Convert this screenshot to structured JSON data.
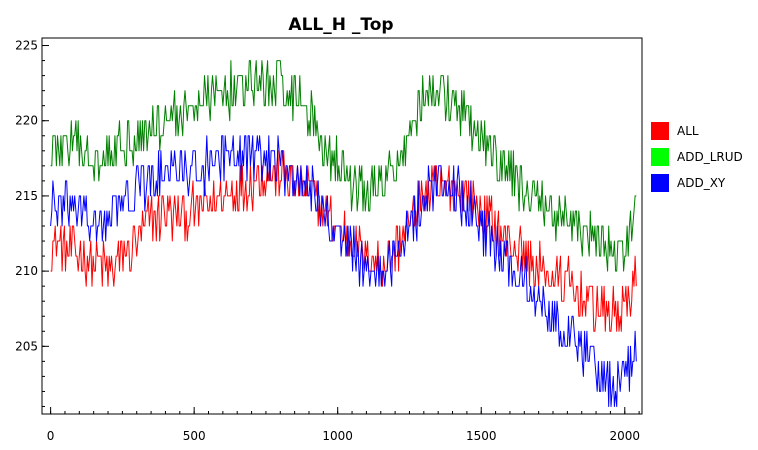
{
  "chart_data": {
    "type": "line",
    "title": "ALL_H _Top",
    "xlabel": "",
    "ylabel": "",
    "xlim": [
      -30,
      2060
    ],
    "ylim": [
      200.5,
      225.5
    ],
    "xticks": [
      0,
      500,
      1000,
      1500,
      2000
    ],
    "yticks": [
      205,
      210,
      215,
      220,
      225
    ],
    "grid": false,
    "legend_position": "right",
    "series": [
      {
        "name": "ALL",
        "color": "#ff0000",
        "x": [
          0,
          50,
          100,
          150,
          200,
          250,
          300,
          350,
          400,
          450,
          500,
          550,
          600,
          650,
          700,
          750,
          800,
          850,
          900,
          950,
          1000,
          1050,
          1100,
          1150,
          1200,
          1250,
          1300,
          1350,
          1400,
          1450,
          1500,
          1550,
          1600,
          1650,
          1700,
          1750,
          1800,
          1850,
          1900,
          1950,
          2000,
          2040
        ],
        "values": [
          212,
          211.5,
          211,
          210.5,
          210,
          211,
          212,
          213.5,
          214,
          213.5,
          214,
          214.5,
          215,
          215.5,
          216,
          216.5,
          216.5,
          216,
          215.5,
          214,
          213,
          212,
          211,
          210.5,
          211.5,
          213,
          215,
          215.5,
          215.5,
          215,
          214,
          213,
          212,
          211,
          210,
          209.5,
          209,
          208.5,
          207.5,
          207,
          207.5,
          210
        ]
      },
      {
        "name": "ADD_LRUD",
        "color": "#008000",
        "x": [
          0,
          50,
          100,
          150,
          200,
          250,
          300,
          350,
          400,
          450,
          500,
          550,
          600,
          650,
          700,
          750,
          800,
          850,
          900,
          950,
          1000,
          1050,
          1100,
          1150,
          1200,
          1250,
          1300,
          1350,
          1400,
          1450,
          1500,
          1550,
          1600,
          1650,
          1700,
          1750,
          1800,
          1850,
          1900,
          1950,
          2000,
          2040
        ],
        "values": [
          218,
          218.5,
          218,
          217.5,
          218,
          218.5,
          219,
          219.5,
          220,
          220.5,
          221,
          221.5,
          222,
          222,
          222.5,
          222.5,
          222.5,
          222,
          220.5,
          218.5,
          217,
          216,
          215,
          215.5,
          217,
          219.5,
          221.5,
          222,
          221,
          220,
          218.5,
          217.5,
          216.5,
          215.5,
          214.5,
          214,
          213.5,
          212.5,
          212,
          211.5,
          211,
          214
        ]
      },
      {
        "name": "ADD_XY",
        "color": "#0000ff",
        "x": [
          0,
          50,
          100,
          150,
          200,
          250,
          300,
          350,
          400,
          450,
          500,
          550,
          600,
          650,
          700,
          750,
          800,
          850,
          900,
          950,
          1000,
          1050,
          1100,
          1150,
          1200,
          1250,
          1300,
          1350,
          1400,
          1450,
          1500,
          1550,
          1600,
          1650,
          1700,
          1750,
          1800,
          1850,
          1900,
          1950,
          2000,
          2040
        ],
        "values": [
          214,
          214.5,
          214,
          213,
          213.5,
          214.5,
          215.5,
          216,
          216.5,
          216.5,
          217,
          217,
          217.5,
          217.5,
          218,
          217.5,
          217,
          216.5,
          215.5,
          214,
          212.5,
          211.5,
          210.5,
          210,
          211,
          213,
          215,
          216,
          215.5,
          214.5,
          213,
          211.5,
          210.5,
          209.5,
          208,
          207,
          206,
          205,
          203.5,
          202.5,
          203,
          205
        ]
      }
    ]
  }
}
